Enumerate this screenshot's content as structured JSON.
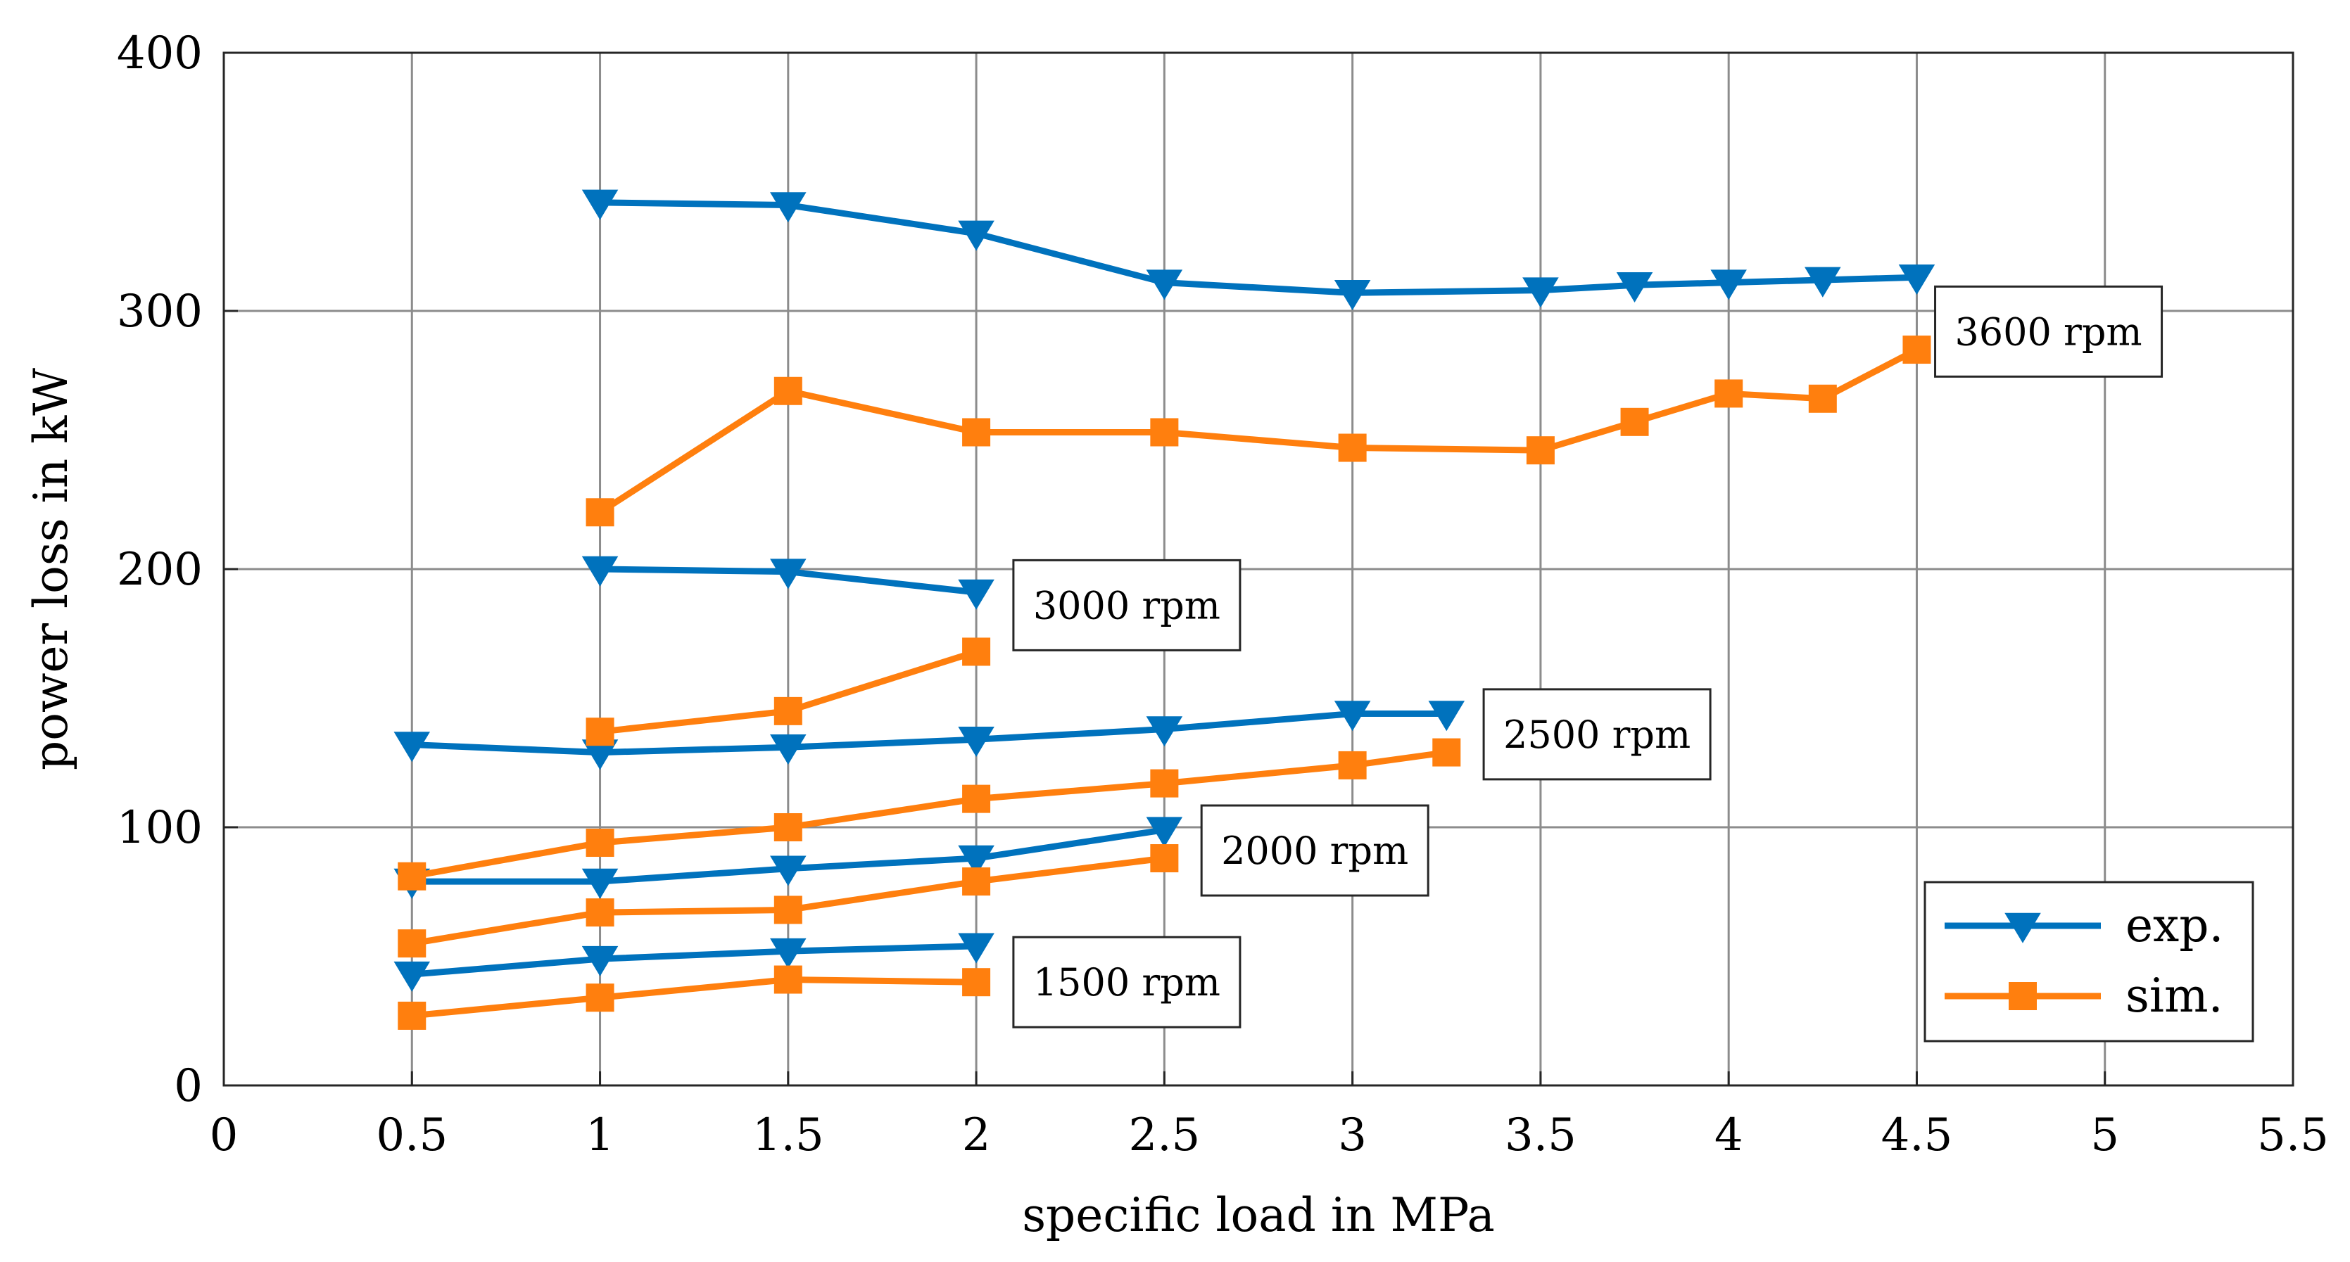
{
  "chart_data": {
    "type": "line",
    "title": "",
    "xlabel": "specific load in MPa",
    "ylabel": "power loss in kW",
    "xlim": [
      0,
      5.5
    ],
    "ylim": [
      0,
      400
    ],
    "xticks": [
      0,
      0.5,
      1,
      1.5,
      2,
      2.5,
      3,
      3.5,
      4,
      4.5,
      5,
      5.5
    ],
    "xtick_labels": [
      "0",
      "0.5",
      "1",
      "1.5",
      "2",
      "2.5",
      "3",
      "3.5",
      "4",
      "4.5",
      "5",
      "5.5"
    ],
    "yticks": [
      0,
      100,
      200,
      300,
      400
    ],
    "ytick_labels": [
      "0",
      "100",
      "200",
      "300",
      "400"
    ],
    "grid": true,
    "legend_position": "bottom-right",
    "legend": [
      {
        "label": "exp.",
        "color": "#0072BD",
        "marker": "triangle-down"
      },
      {
        "label": "sim.",
        "color": "#FF7F0E",
        "marker": "square"
      }
    ],
    "series": [
      {
        "name": "exp. 1500 rpm",
        "kind": "exp",
        "x": [
          0.5,
          1,
          1.5,
          2
        ],
        "y": [
          43,
          49,
          52,
          54
        ]
      },
      {
        "name": "sim. 1500 rpm",
        "kind": "sim",
        "x": [
          0.5,
          1,
          1.5,
          2
        ],
        "y": [
          27,
          34,
          41,
          40
        ]
      },
      {
        "name": "exp. 2000 rpm",
        "kind": "exp",
        "x": [
          0.5,
          1,
          1.5,
          2,
          2.5
        ],
        "y": [
          79,
          79,
          84,
          88,
          99
        ]
      },
      {
        "name": "sim. 2000 rpm",
        "kind": "sim",
        "x": [
          0.5,
          1,
          1.5,
          2,
          2.5
        ],
        "y": [
          55,
          67,
          68,
          79,
          88
        ]
      },
      {
        "name": "exp. 2500 rpm",
        "kind": "exp",
        "x": [
          0.5,
          1,
          1.5,
          2,
          2.5,
          3,
          3.25
        ],
        "y": [
          132,
          129,
          131,
          134,
          138,
          144,
          144
        ]
      },
      {
        "name": "sim. 2500 rpm",
        "kind": "sim",
        "x": [
          0.5,
          1,
          1.5,
          2,
          2.5,
          3,
          3.25
        ],
        "y": [
          81,
          94,
          100,
          111,
          117,
          124,
          129
        ]
      },
      {
        "name": "exp. 3000 rpm",
        "kind": "exp",
        "x": [
          1,
          1.5,
          2
        ],
        "y": [
          200,
          199,
          191
        ]
      },
      {
        "name": "sim. 3000 rpm",
        "kind": "sim",
        "x": [
          1,
          1.5,
          2
        ],
        "y": [
          137,
          145,
          168
        ]
      },
      {
        "name": "exp. 3600 rpm",
        "kind": "exp",
        "x": [
          1,
          1.5,
          2,
          2.5,
          3,
          3.5,
          3.75,
          4,
          4.25,
          4.5
        ],
        "y": [
          342,
          341,
          330,
          311,
          307,
          308,
          310,
          311,
          312,
          313
        ]
      },
      {
        "name": "sim. 3600 rpm",
        "kind": "sim",
        "x": [
          1,
          1.5,
          2,
          2.5,
          3,
          3.5,
          3.75,
          4,
          4.25,
          4.5
        ],
        "y": [
          222,
          269,
          253,
          253,
          247,
          246,
          257,
          268,
          266,
          285
        ]
      }
    ],
    "annotations": [
      {
        "text": "1500 rpm",
        "x": 2.4,
        "y": 40
      },
      {
        "text": "2000 rpm",
        "x": 2.9,
        "y": 91
      },
      {
        "text": "2500 rpm",
        "x": 3.65,
        "y": 136
      },
      {
        "text": "3000 rpm",
        "x": 2.4,
        "y": 186
      },
      {
        "text": "3600 rpm",
        "x": 4.85,
        "y": 292
      }
    ]
  }
}
